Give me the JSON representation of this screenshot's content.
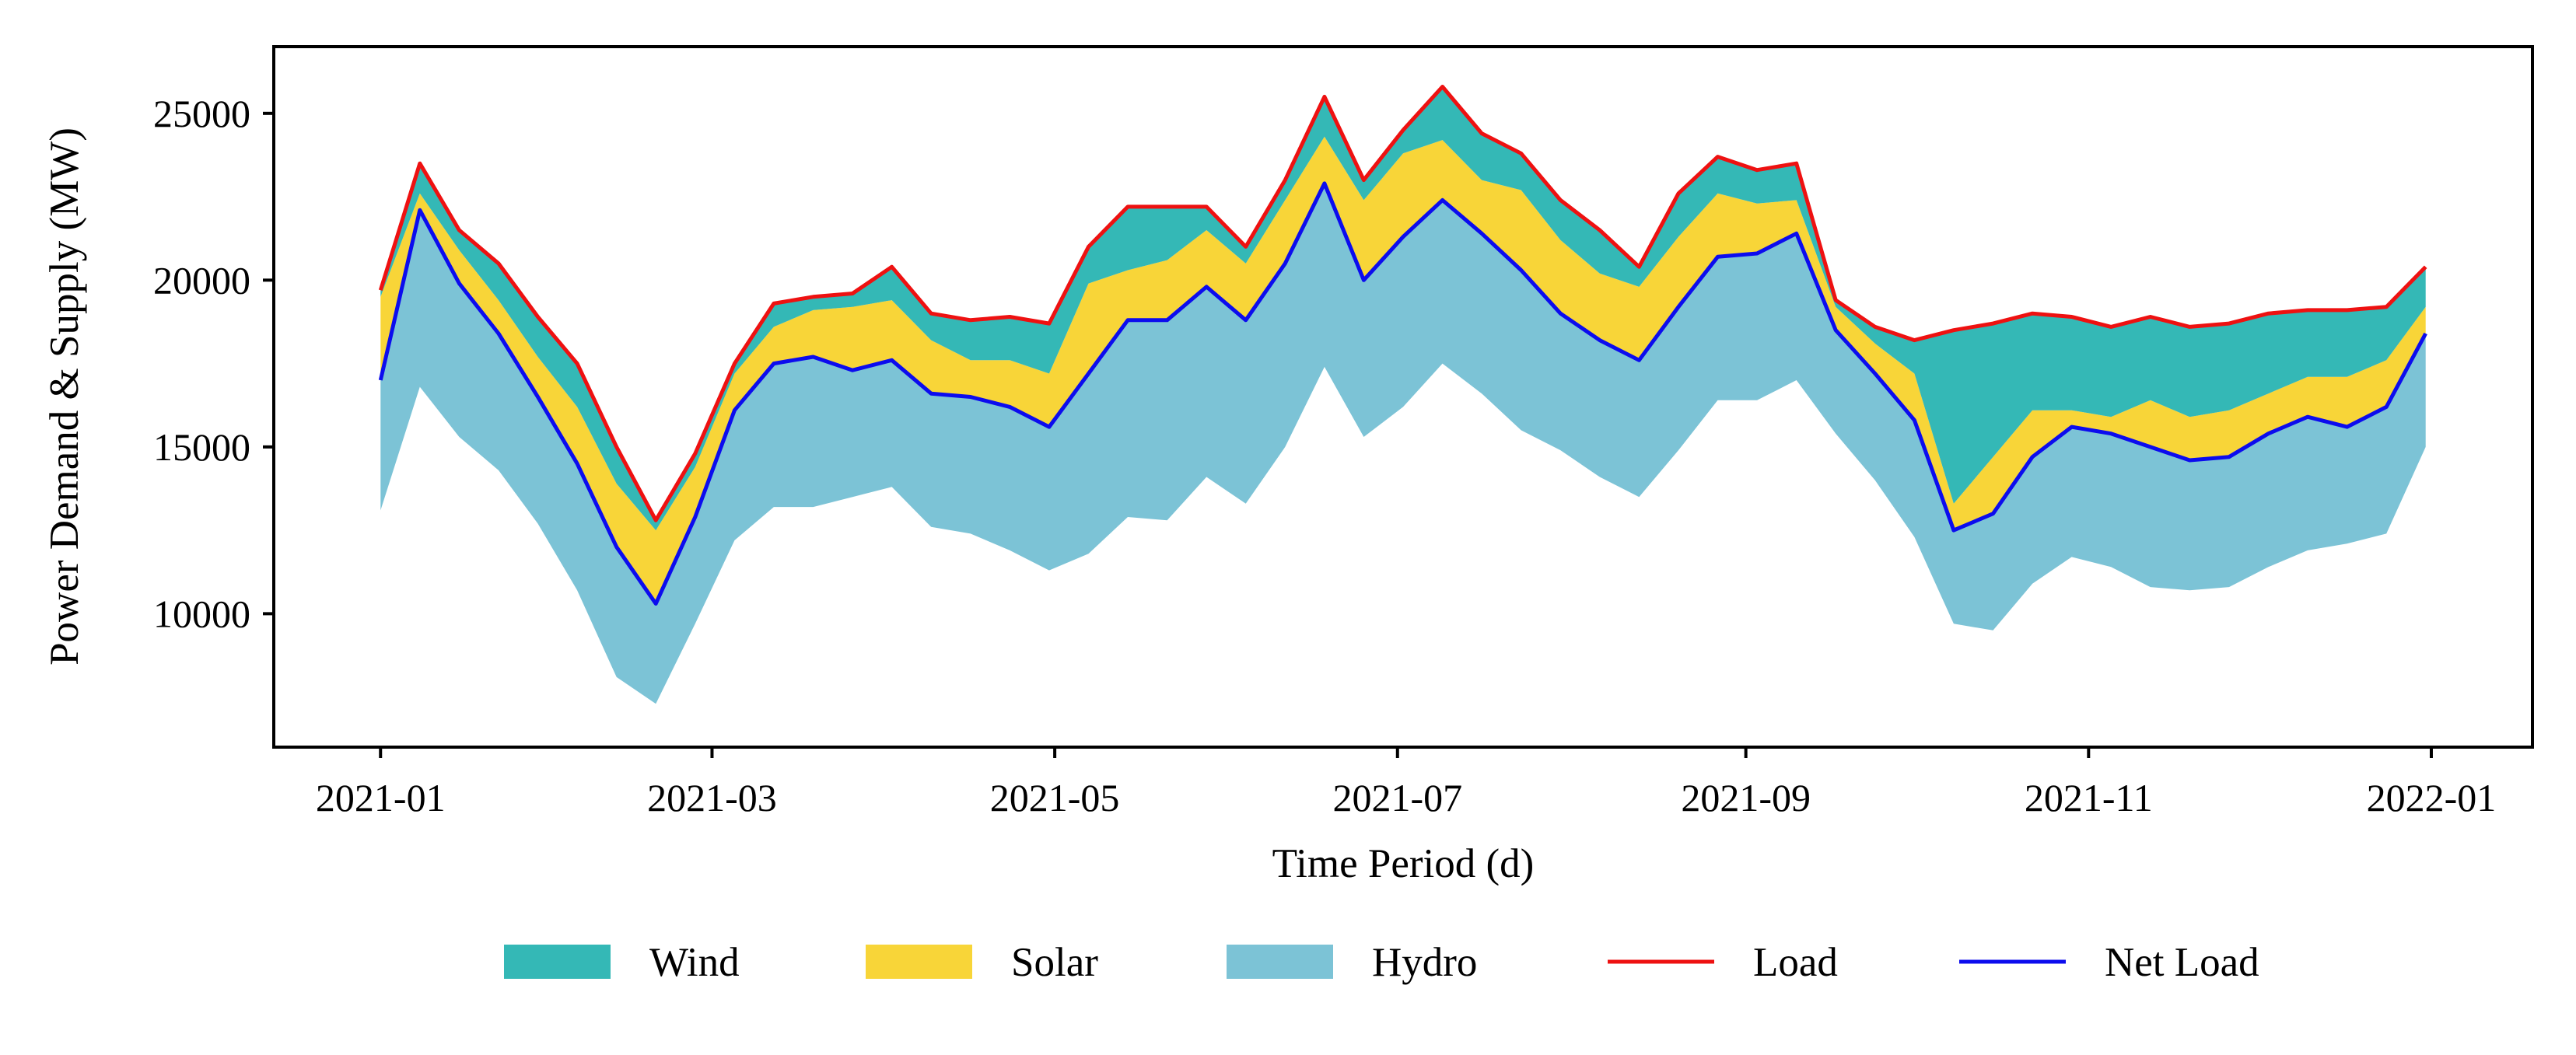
{
  "chart_data": {
    "type": "area",
    "title": "",
    "xlabel": "Time Period (d)",
    "ylabel": "Power Demand & Supply (MW)",
    "xlim": [
      "2020-12-13",
      "2022-01-19"
    ],
    "ylim": [
      6000,
      27000
    ],
    "x_ticks": [
      "2021-01",
      "2021-03",
      "2021-05",
      "2021-07",
      "2021-09",
      "2021-11",
      "2022-01"
    ],
    "y_ticks": [
      10000,
      15000,
      20000,
      25000
    ],
    "grid": false,
    "legend_position": "bottom-center",
    "colors": {
      "wind": "#34b8b6",
      "solar": "#f8d538",
      "hydro": "#7cc3d6",
      "load": "#ee1111",
      "net_load": "#0c0cee"
    },
    "legend": [
      {
        "label": "Wind",
        "kind": "patch",
        "color": "#34b8b6"
      },
      {
        "label": "Solar",
        "kind": "patch",
        "color": "#f8d538"
      },
      {
        "label": "Hydro",
        "kind": "patch",
        "color": "#7cc3d6"
      },
      {
        "label": "Load",
        "kind": "line",
        "color": "#ee1111"
      },
      {
        "label": "Net Load",
        "kind": "line",
        "color": "#0c0cee"
      }
    ],
    "x": [
      "2021-01-01",
      "2021-01-08",
      "2021-01-15",
      "2021-01-22",
      "2021-01-29",
      "2021-02-05",
      "2021-02-12",
      "2021-02-19",
      "2021-02-26",
      "2021-03-05",
      "2021-03-12",
      "2021-03-19",
      "2021-03-26",
      "2021-04-02",
      "2021-04-09",
      "2021-04-16",
      "2021-04-23",
      "2021-04-30",
      "2021-05-07",
      "2021-05-14",
      "2021-05-21",
      "2021-05-28",
      "2021-06-04",
      "2021-06-11",
      "2021-06-18",
      "2021-06-25",
      "2021-07-02",
      "2021-07-09",
      "2021-07-16",
      "2021-07-23",
      "2021-07-30",
      "2021-08-06",
      "2021-08-13",
      "2021-08-20",
      "2021-08-27",
      "2021-09-03",
      "2021-09-10",
      "2021-09-17",
      "2021-09-24",
      "2021-10-01",
      "2021-10-08",
      "2021-10-15",
      "2021-10-22",
      "2021-10-29",
      "2021-11-05",
      "2021-11-12",
      "2021-11-19",
      "2021-11-26",
      "2021-12-03",
      "2021-12-10",
      "2021-12-17",
      "2021-12-24",
      "2021-12-31"
    ],
    "series": [
      {
        "name": "Load",
        "values": [
          19700,
          23500,
          21500,
          20500,
          18900,
          17500,
          15000,
          12800,
          14800,
          17500,
          19300,
          19500,
          19600,
          20400,
          19000,
          18800,
          18900,
          18700,
          21000,
          22200,
          22200,
          22200,
          21000,
          23000,
          25500,
          23000,
          24500,
          25800,
          24400,
          23800,
          22400,
          21500,
          20400,
          22600,
          23700,
          23300,
          23500,
          19400,
          18600,
          18200,
          18500,
          18700,
          19000,
          18900,
          18600,
          18900,
          18600,
          18700,
          19000,
          19100,
          19100,
          19200,
          20400
        ]
      },
      {
        "name": "Solar top",
        "values": [
          19500,
          22600,
          20900,
          19400,
          17700,
          16200,
          13900,
          12500,
          14400,
          17200,
          18600,
          19100,
          19200,
          19400,
          18200,
          17600,
          17600,
          17200,
          19900,
          20300,
          20600,
          21500,
          20500,
          22400,
          24300,
          22400,
          23800,
          24200,
          23000,
          22700,
          21200,
          20200,
          19800,
          21300,
          22600,
          22300,
          22400,
          19200,
          18100,
          17200,
          13300,
          14700,
          16100,
          16100,
          15900,
          16400,
          15900,
          16100,
          16600,
          17100,
          17100,
          17600,
          19200
        ]
      },
      {
        "name": "Net Load",
        "values": [
          17000,
          22100,
          19900,
          18400,
          16500,
          14500,
          12000,
          10300,
          12900,
          16100,
          17500,
          17700,
          17300,
          17600,
          16600,
          16500,
          16200,
          15600,
          17200,
          18800,
          18800,
          19800,
          18800,
          20500,
          22900,
          20000,
          21300,
          22400,
          21400,
          20300,
          19000,
          18200,
          17600,
          19200,
          20700,
          20800,
          21400,
          18500,
          17200,
          15800,
          12500,
          13000,
          14700,
          15600,
          15400,
          15000,
          14600,
          14700,
          15400,
          15900,
          15600,
          16200,
          18400
        ]
      },
      {
        "name": "Hydro bottom",
        "values": [
          13100,
          16800,
          15300,
          14300,
          12700,
          10700,
          8100,
          7300,
          9700,
          12200,
          13200,
          13200,
          13500,
          13800,
          12600,
          12400,
          11900,
          11300,
          11800,
          12900,
          12800,
          14100,
          13300,
          15000,
          17400,
          15300,
          16200,
          17500,
          16600,
          15500,
          14900,
          14100,
          13500,
          14900,
          16400,
          16400,
          17000,
          15400,
          14000,
          12300,
          9700,
          9500,
          10900,
          11700,
          11400,
          10800,
          10700,
          10800,
          11400,
          11900,
          12100,
          12400,
          15000
        ]
      }
    ]
  }
}
